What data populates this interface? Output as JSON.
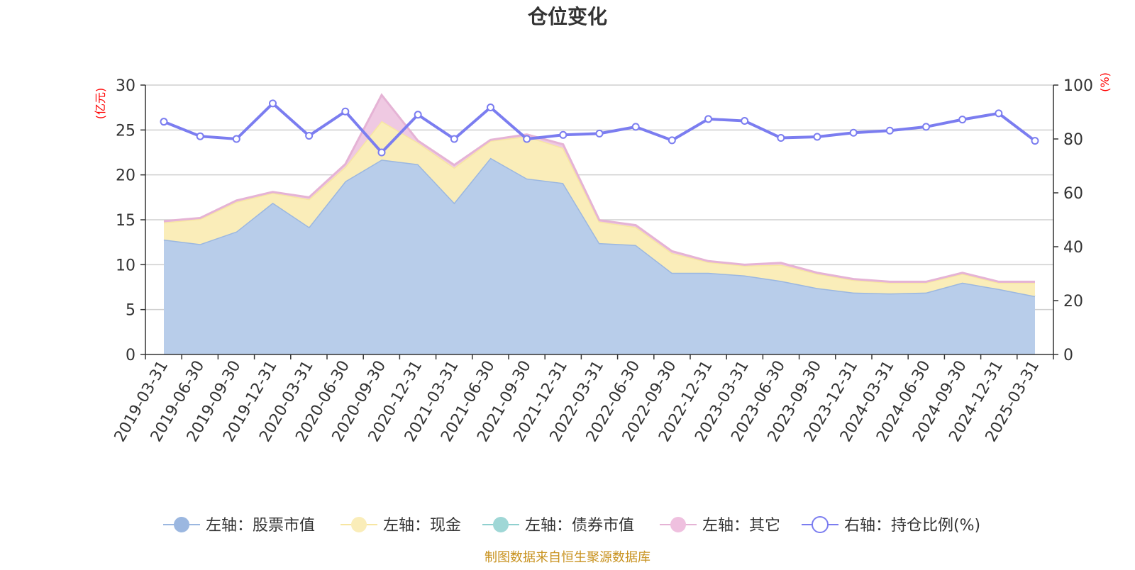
{
  "chart_data": {
    "type": "area",
    "title": "仓位变化",
    "y_left_unit": "(亿元)",
    "y_right_unit": "(%)",
    "categories": [
      "2019-03-31",
      "2019-06-30",
      "2019-09-30",
      "2019-12-31",
      "2020-03-31",
      "2020-06-30",
      "2020-09-30",
      "2020-12-31",
      "2021-03-31",
      "2021-06-30",
      "2021-09-30",
      "2021-12-31",
      "2022-03-31",
      "2022-06-30",
      "2022-09-30",
      "2022-12-31",
      "2023-03-31",
      "2023-06-30",
      "2023-09-30",
      "2023-12-31",
      "2024-03-31",
      "2024-06-30",
      "2024-09-30",
      "2024-12-31",
      "2025-03-31"
    ],
    "y_left": {
      "min": 0,
      "max": 30,
      "ticks": [
        "0",
        "5",
        "10",
        "15",
        "20",
        "25",
        "30"
      ]
    },
    "y_right": {
      "min": 0,
      "max": 100,
      "ticks": [
        "0",
        "20",
        "40",
        "60",
        "80",
        "100"
      ]
    },
    "grid": true,
    "legend_position": "bottom",
    "series": [
      {
        "name": "左轴：股票市值",
        "axis": "left",
        "stack": true,
        "color": "#b8cdea",
        "line_color": "#9bb7e0",
        "values": [
          12.8,
          12.3,
          13.7,
          16.9,
          14.2,
          19.3,
          21.7,
          21.2,
          16.9,
          21.9,
          19.6,
          19.1,
          12.4,
          12.2,
          9.1,
          9.1,
          8.8,
          8.2,
          7.4,
          6.9,
          6.8,
          6.9,
          8.0,
          7.3,
          6.5
        ]
      },
      {
        "name": "左轴：现金",
        "axis": "left",
        "stack": true,
        "color": "#faedb9",
        "line_color": "#f7e6a2",
        "values": [
          1.9,
          2.8,
          3.3,
          1.1,
          3.1,
          1.6,
          4.3,
          2.4,
          3.9,
          1.9,
          4.7,
          3.9,
          2.4,
          2.0,
          2.2,
          1.2,
          1.1,
          1.8,
          1.6,
          1.4,
          1.2,
          1.1,
          1.0,
          0.7,
          1.5
        ]
      },
      {
        "name": "左轴：债券市值",
        "axis": "left",
        "stack": true,
        "color": "#9fd7d6",
        "line_color": "#8fd0cf",
        "values": [
          0,
          0,
          0,
          0,
          0,
          0,
          0,
          0,
          0,
          0,
          0,
          0,
          0,
          0,
          0,
          0,
          0,
          0,
          0,
          0,
          0,
          0,
          0,
          0,
          0
        ]
      },
      {
        "name": "左轴：其它",
        "axis": "left",
        "stack": true,
        "color": "#efc9e2",
        "line_color": "#e5b3d5",
        "values": [
          0.15,
          0.1,
          0.15,
          0.1,
          0.2,
          0.3,
          2.9,
          0.2,
          0.3,
          0.1,
          0.2,
          0.4,
          0.15,
          0.2,
          0.2,
          0.1,
          0.1,
          0.2,
          0.1,
          0.1,
          0.1,
          0.1,
          0.1,
          0.1,
          0.1
        ]
      },
      {
        "name": "右轴：持仓比例(%)",
        "axis": "right",
        "stack": false,
        "color": "#7b7df0",
        "values": [
          86.4,
          81.0,
          80.0,
          93.2,
          81.2,
          90.2,
          75.0,
          89.0,
          80.0,
          91.7,
          80.0,
          81.5,
          82.0,
          84.5,
          79.5,
          87.4,
          86.7,
          80.4,
          80.8,
          82.3,
          83.1,
          84.5,
          87.2,
          89.5,
          79.3
        ]
      }
    ],
    "source": "制图数据来自恒生聚源数据库"
  }
}
